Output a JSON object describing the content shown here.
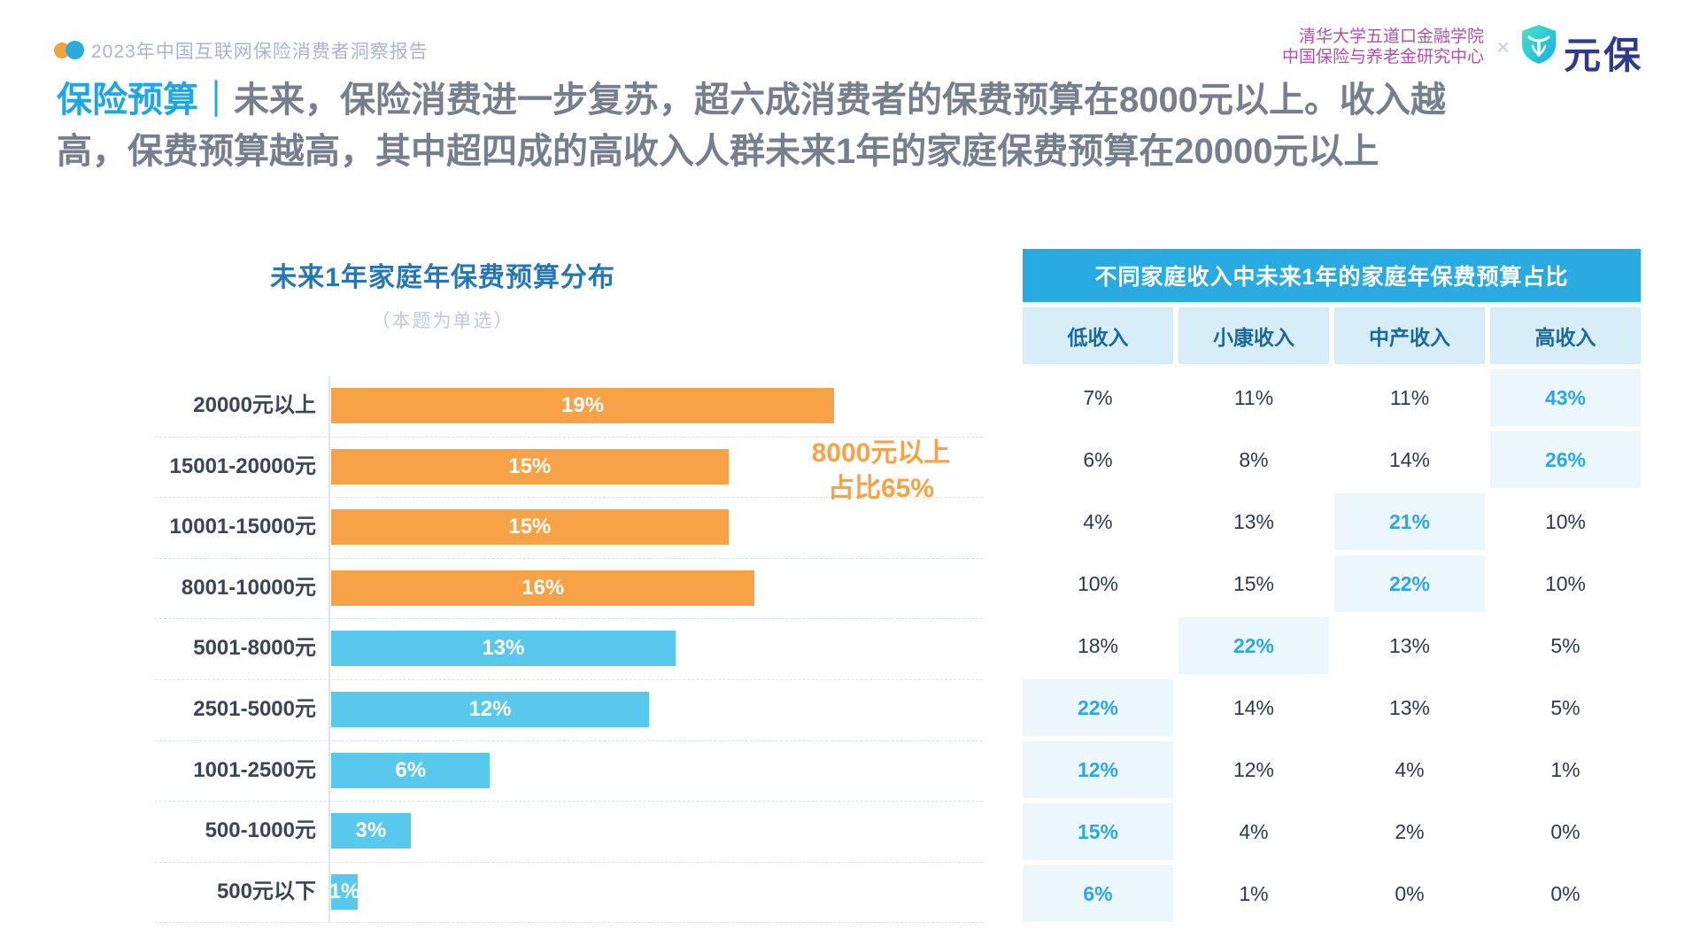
{
  "header": {
    "report_title": "2023年中国互联网保险消费者洞察报告",
    "institute_line1": "清华大学五道口金融学院",
    "institute_line2": "中国保险与养老金研究中心",
    "multiply_sign": "×",
    "brand_name": "元保"
  },
  "headline": {
    "accent": "保险预算",
    "separator": "｜",
    "line1": "未来，保险消费进一步复苏，超六成消费者的保费预算在8000元以上。收入越",
    "line2": "高，保费预算越高，其中超四成的高收入人群未来1年的家庭保费预算在20000元以上"
  },
  "chart_data": {
    "type": "bar",
    "orientation": "horizontal",
    "title": "未来1年家庭年保费预算分布",
    "subtitle": "（本题为单选）",
    "categories": [
      "20000元以上",
      "15001-20000元",
      "10001-15000元",
      "8001-10000元",
      "5001-8000元",
      "2501-5000元",
      "1001-2500元",
      "500-1000元",
      "500元以下"
    ],
    "values": [
      19,
      15,
      15,
      16,
      13,
      12,
      6,
      3,
      1
    ],
    "value_labels": [
      "19%",
      "15%",
      "15%",
      "16%",
      "13%",
      "12%",
      "6%",
      "3%",
      "1%"
    ],
    "orange_count": 4,
    "xlim": [
      0,
      19
    ],
    "grid": "dashed-horizontal",
    "annotation": {
      "line1": "8000元以上",
      "line2": "占比65%"
    }
  },
  "table": {
    "title": "不同家庭收入中未来1年的家庭年保费预算占比",
    "columns": [
      "低收入",
      "小康收入",
      "中产收入",
      "高收入"
    ],
    "rows": [
      [
        "7%",
        "11%",
        "11%",
        "43%"
      ],
      [
        "6%",
        "8%",
        "14%",
        "26%"
      ],
      [
        "4%",
        "13%",
        "21%",
        "10%"
      ],
      [
        "10%",
        "15%",
        "22%",
        "10%"
      ],
      [
        "18%",
        "22%",
        "13%",
        "5%"
      ],
      [
        "22%",
        "14%",
        "13%",
        "5%"
      ],
      [
        "12%",
        "12%",
        "4%",
        "1%"
      ],
      [
        "15%",
        "4%",
        "2%",
        "0%"
      ],
      [
        "6%",
        "1%",
        "0%",
        "0%"
      ]
    ],
    "highlighted_cells": [
      [
        0,
        3
      ],
      [
        1,
        3
      ],
      [
        2,
        2
      ],
      [
        3,
        2
      ],
      [
        4,
        1
      ],
      [
        5,
        0
      ],
      [
        6,
        0
      ],
      [
        7,
        0
      ],
      [
        8,
        0
      ]
    ]
  },
  "colors": {
    "accent_blue": "#1EA7E4",
    "bar_orange": "#F8A247",
    "bar_blue": "#58C8EC",
    "annotation_orange": "#F8A246",
    "table_title_bg": "#29ABE2",
    "table_header_bg": "#D7EEF9",
    "highlight_bg": "#EBF7FC",
    "highlight_text": "#2AA9E1"
  }
}
